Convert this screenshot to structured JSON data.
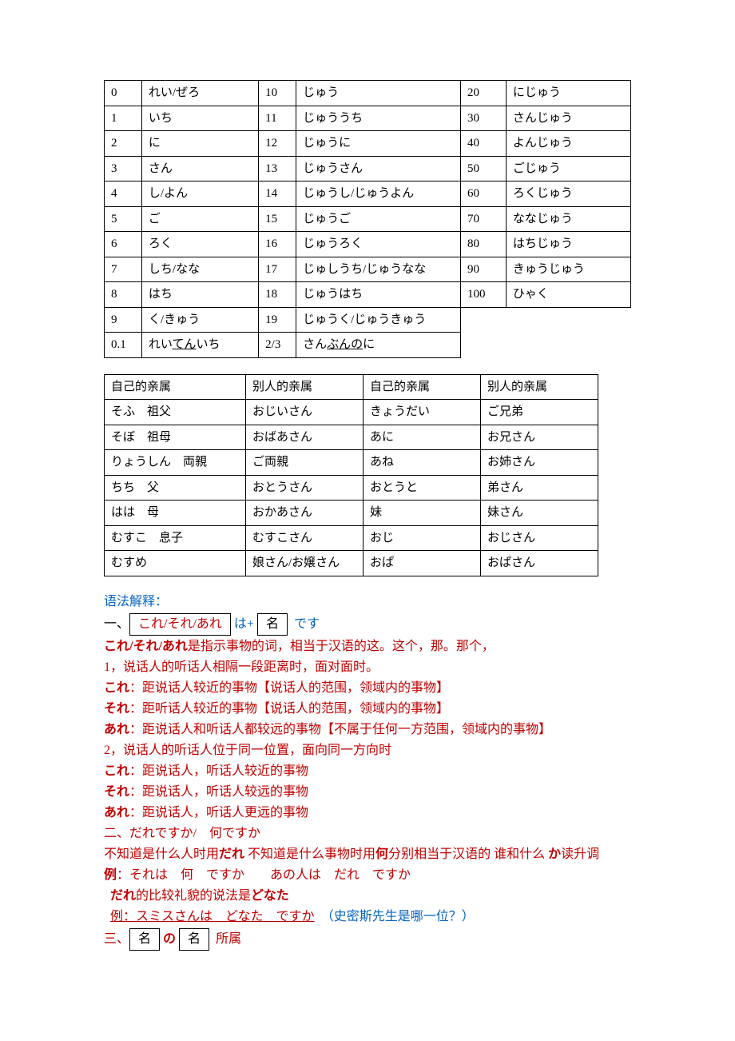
{
  "numbers": [
    [
      "0",
      "れい/ぜろ",
      "10",
      "じゅう",
      "20",
      "にじゅう"
    ],
    [
      "1",
      "いち",
      "11",
      "じゅううち",
      "30",
      "さんじゅう"
    ],
    [
      "2",
      "に",
      "12",
      "じゅうに",
      "40",
      "よんじゅう"
    ],
    [
      "3",
      "さん",
      "13",
      "じゅうさん",
      "50",
      "ごじゅう"
    ],
    [
      "4",
      "し/よん",
      "14",
      "じゅうし/じゅうよん",
      "60",
      "ろくじゅう"
    ],
    [
      "5",
      "ご",
      "15",
      "じゅうご",
      "70",
      "ななじゅう"
    ],
    [
      "6",
      "ろく",
      "16",
      "じゅうろく",
      "80",
      "はちじゅう"
    ],
    [
      "7",
      "しち/なな",
      "17",
      "じゅしうち/じゅうなな",
      "90",
      "きゅうじゅう"
    ],
    [
      "8",
      "はち",
      "18",
      "じゅうはち",
      "100",
      "ひゃく"
    ],
    [
      "9",
      "く/きゅう",
      "19",
      "じゅうく/じゅうきゅう",
      "",
      ""
    ],
    [
      "0.1",
      "れいてんいち",
      "2/3",
      "さんぶんのに",
      "",
      ""
    ]
  ],
  "family": [
    [
      "自己的亲属",
      "别人的亲属",
      "自己的亲属",
      "别人的亲属"
    ],
    [
      "そふ　祖父",
      "おじいさん",
      "きょうだい",
      "ご兄弟"
    ],
    [
      "そぼ　祖母",
      "おばあさん",
      "あに",
      "お兄さん"
    ],
    [
      "りょうしん　両親",
      "ご両親",
      "あね",
      "お姉さん"
    ],
    [
      "ちち　父",
      "おとうさん",
      "おとうと",
      "弟さん"
    ],
    [
      "はは　母",
      "おかあさん",
      "妹",
      "妹さん"
    ],
    [
      "むすこ　息子",
      "むすこさん",
      "おじ",
      "おじさん"
    ],
    [
      "むすめ",
      "娘さん/お嬢さん",
      "おぱ",
      "おぱさん"
    ]
  ],
  "g": {
    "title": "语法解释：",
    "sec1": "一、",
    "kore": "これ/それ/あれ",
    "wa": "は+",
    "mei": "名",
    "desu": "です",
    "l1": "これ/それ/あれ",
    "l1b": "是指示事物的词，相当于汉语的这。这个，那。那个，",
    "l2": "1，说话人的听话人相隔一段距离时，面对面时。",
    "l3a": "これ",
    "l3b": "：距说话人较近的事物【说话人的范围，领域内的事物】",
    "l4a": "それ",
    "l4b": "：距听话人较近的事物【说话人的范围，领域内的事物】",
    "l5a": "あれ",
    "l5b": "：距说话人和听话人都较远的事物【不属于任何一方范围，领域内的事物】",
    "l6": "2，说话人的听话人位于同一位置，面向同一方向时",
    "l7a": "これ",
    "l7b": "：距说话人，听话人较近的事物",
    "l8a": "それ",
    "l8b": "：距说话人，听话人较远的事物",
    "l9a": "あれ",
    "l9b": "：距说话人，听话人更远的事物",
    "s2": "二、だれですか/　何ですか",
    "l10a": "不知道是什么人时用",
    "l10b": "だれ",
    "l10c": " 不知道是什么事物时用",
    "l10d": "何",
    "l10e": "分别相当于汉语的 谁和什么 ",
    "l10f": "か",
    "l10g": "读升调",
    "l11a": "例",
    "l11b": "：それは　何　ですか　　あの人は　だれ　ですか",
    "l12a": "だれ",
    "l12b": "的比较礼貌的说法是",
    "l12c": "どなた",
    "l13a": "例：スミスさんは　どなた　ですか",
    "l13b": "　（史密斯先生是哪一位？）",
    "s3": "三、",
    "no": "の",
    "shozoku": "所属"
  }
}
